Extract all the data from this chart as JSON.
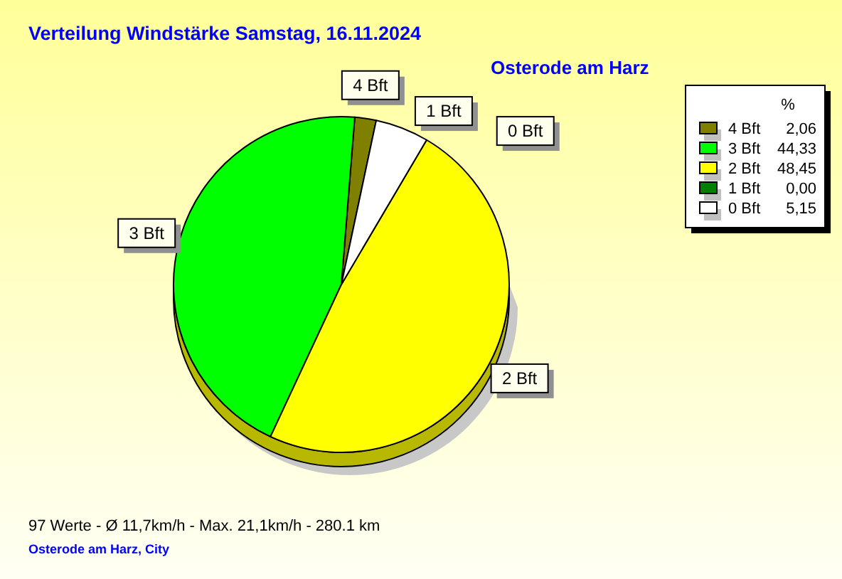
{
  "chart_data": {
    "type": "pie",
    "title": "Verteilung Windstärke  Samstag, 16.11.2024",
    "subtitle": "Osterode am Harz",
    "categories": [
      "4 Bft",
      "3 Bft",
      "2 Bft",
      "1 Bft",
      "0 Bft"
    ],
    "values": [
      2.06,
      44.33,
      48.45,
      0.0,
      5.15
    ],
    "value_labels": [
      "2,06",
      "44,33",
      "48,45",
      "0,00",
      "5,15"
    ],
    "colors": [
      "#808000",
      "#00ff00",
      "#ffff00",
      "#008000",
      "#ffffff"
    ],
    "legend": "top right",
    "legend_title": "%",
    "annotations": [
      "97 Werte   -   Ø 11,7km/h  -  Max. 21,1km/h   -   280.1 km",
      "Osterode am Harz, City"
    ]
  }
}
